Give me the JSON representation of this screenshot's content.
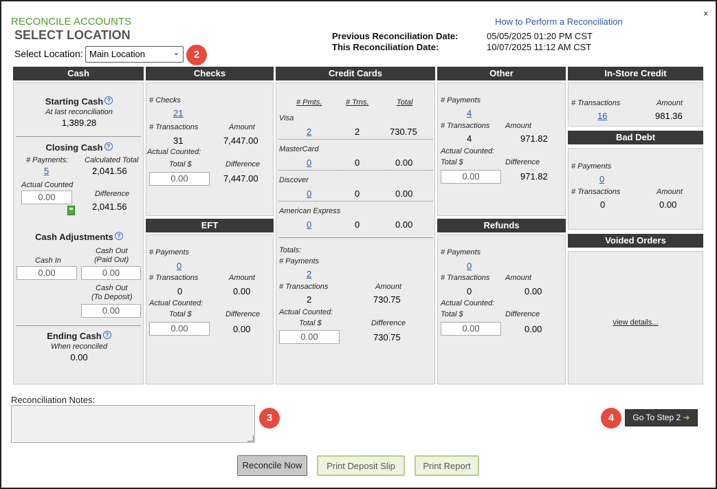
{
  "header": {
    "title": "RECONCILE ACCOUNTS",
    "subtitle": "SELECT LOCATION",
    "help_link": "How to Perform a Reconciliation",
    "close_glyph": "×",
    "prev_label": "Previous Reconciliation Date:",
    "prev_value": "05/05/2025 01:20 PM CST",
    "this_label": "This Reconciliation Date:",
    "this_value": "10/07/2025 11:12 AM CST",
    "location_label": "Select Location:",
    "location_value": "Main Location",
    "chevron": "⌄"
  },
  "badges": {
    "b2": "2",
    "b3": "3",
    "b4": "4"
  },
  "cash": {
    "title": "Cash",
    "starting_label": "Starting Cash",
    "starting_sub": "At last reconciliation",
    "starting_value": "1,389.28",
    "closing_label": "Closing Cash",
    "payments_label": "# Payments:",
    "payments_value": "5",
    "calc_label": "Calculated Total",
    "calc_value": "2,041.56",
    "actual_label": "Actual Counted",
    "actual_value": "0.00",
    "diff_label": "Difference",
    "diff_value": "2,041.56",
    "adjust_label": "Cash Adjustments",
    "cash_in_label": "Cash In",
    "cash_in_value": "0.00",
    "cash_out_paid_label1": "Cash Out",
    "cash_out_paid_label2": "(Paid Out)",
    "cash_out_paid_value": "0.00",
    "cash_out_dep_label1": "Cash Out",
    "cash_out_dep_label2": "(To Deposit)",
    "cash_out_dep_value": "0.00",
    "ending_label": "Ending Cash",
    "ending_sub": "When reconciled",
    "ending_value": "0.00",
    "help_glyph": "?"
  },
  "checks": {
    "title": "Checks",
    "count_label": "# Checks",
    "count_value": "21",
    "trans_label": "# Transactions",
    "trans_value": "31",
    "amount_label": "Amount",
    "amount_value": "7,447.00",
    "actual_label": "Actual Counted:",
    "total_label": "Total $",
    "total_value": "0.00",
    "diff_label": "Difference",
    "diff_value": "7,447.00"
  },
  "eft": {
    "title": "EFT",
    "payments_label": "# Payments",
    "payments_value": "0",
    "trans_label": "# Transactions",
    "trans_value": "0",
    "amount_label": "Amount",
    "amount_value": "0.00",
    "actual_label": "Actual Counted:",
    "total_label": "Total $",
    "total_value": "0.00",
    "diff_label": "Difference",
    "diff_value": "0.00"
  },
  "cards": {
    "title": "Credit Cards",
    "col_pmts": "# Pmts.",
    "col_trns": "# Trns.",
    "col_total": "Total",
    "rows": [
      {
        "name": "Visa",
        "pmts": "2",
        "trns": "2",
        "total": "730.75"
      },
      {
        "name": "MasterCard",
        "pmts": "0",
        "trns": "0",
        "total": "0.00"
      },
      {
        "name": "Discover",
        "pmts": "0",
        "trns": "0",
        "total": "0.00"
      },
      {
        "name": "American Express",
        "pmts": "0",
        "trns": "0",
        "total": "0.00"
      }
    ],
    "totals_label": "Totals:",
    "payments_label": "# Payments",
    "payments_value": "2",
    "trans_label": "# Transactions",
    "trans_value": "2",
    "amount_label": "Amount",
    "amount_value": "730.75",
    "actual_label": "Actual Counted:",
    "total_label": "Total $",
    "total_value": "0.00",
    "diff_label": "Difference",
    "diff_value": "730.75"
  },
  "other": {
    "title": "Other",
    "payments_label": "# Payments",
    "payments_value": "4",
    "trans_label": "# Transactions",
    "trans_value": "4",
    "amount_label": "Amount",
    "amount_value": "971.82",
    "actual_label": "Actual Counted:",
    "total_label": "Total $",
    "total_value": "0.00",
    "diff_label": "Difference",
    "diff_value": "971.82"
  },
  "refunds": {
    "title": "Refunds",
    "payments_label": "# Payments",
    "payments_value": "0",
    "trans_label": "# Transactions",
    "trans_value": "0",
    "amount_label": "Amount",
    "amount_value": "0.00",
    "actual_label": "Actual Counted:",
    "total_label": "Total $",
    "total_value": "0.00",
    "diff_label": "Difference",
    "diff_value": "0.00"
  },
  "store_credit": {
    "title": "In-Store Credit",
    "trans_label": "# Transactions",
    "trans_value": "16",
    "amount_label": "Amount",
    "amount_value": "981.36"
  },
  "bad_debt": {
    "title": "Bad Debt",
    "payments_label": "# Payments",
    "payments_value": "0",
    "trans_label": "# Transactions",
    "trans_value": "0",
    "amount_label": "Amount",
    "amount_value": "0.00"
  },
  "voided": {
    "title": "Voided Orders",
    "link": "view details..."
  },
  "footer": {
    "notes_label": "Reconciliation Notes:",
    "notes_value": "",
    "step2_label": "Go To Step 2",
    "step2_arrow": "➜",
    "reconcile_label": "Reconcile Now",
    "deposit_label": "Print Deposit Slip",
    "report_label": "Print Report"
  },
  "colors": {
    "accent_green": "#4e9a2a",
    "link_blue": "#2a5aa0",
    "badge_red": "#e7493d",
    "header_dark": "#393939"
  }
}
